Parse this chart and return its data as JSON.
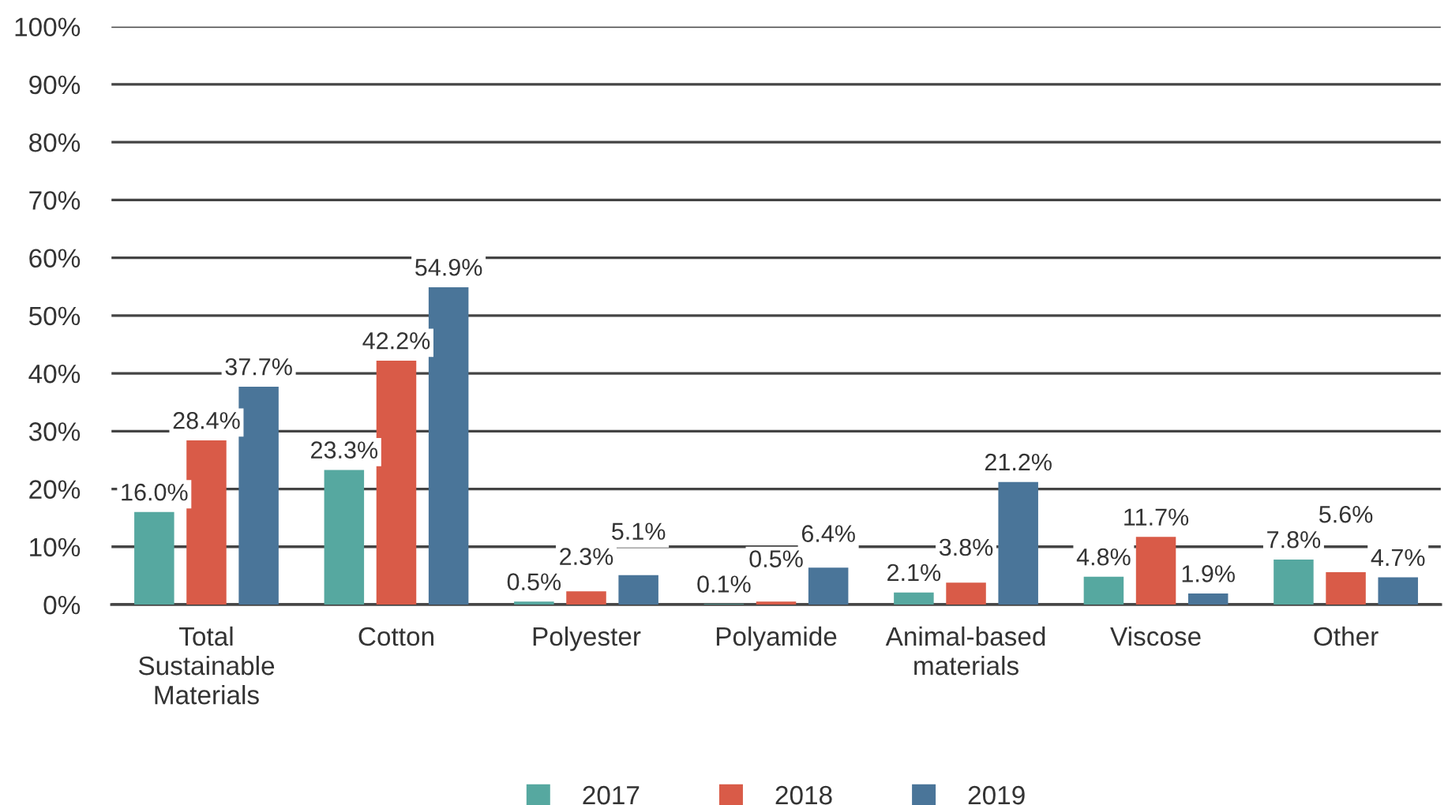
{
  "chart_data": {
    "type": "bar",
    "categories": [
      "Total\nSustainable\nMaterials",
      "Cotton",
      "Polyester",
      "Polyamide",
      "Animal-based\nmaterials",
      "Viscose",
      "Other"
    ],
    "series": [
      {
        "name": "2017",
        "color": "#56a8a0",
        "values": [
          16.0,
          23.3,
          0.5,
          0.1,
          2.1,
          4.8,
          7.8
        ],
        "value_labels": [
          "16.0%",
          "23.3%",
          "0.5%",
          "0.1%",
          "2.1%",
          "4.8%",
          "7.8%"
        ]
      },
      {
        "name": "2018",
        "color": "#d95b48",
        "values": [
          28.4,
          42.2,
          2.3,
          0.5,
          3.8,
          11.7,
          5.6
        ],
        "value_labels": [
          "28.4%",
          "42.2%",
          "2.3%",
          "0.5%",
          "3.8%",
          "11.7%",
          "5.6%"
        ]
      },
      {
        "name": "2019",
        "color": "#4a7599",
        "values": [
          37.7,
          54.9,
          5.1,
          6.4,
          21.2,
          1.9,
          4.7
        ],
        "value_labels": [
          "37.7%",
          "54.9%",
          "5.1%",
          "6.4%",
          "21.2%",
          "1.9%",
          "4.7%"
        ]
      }
    ],
    "ylim": [
      0,
      100
    ],
    "yticks": [
      {
        "value": 0,
        "label": "0%"
      },
      {
        "value": 10,
        "label": "10%"
      },
      {
        "value": 20,
        "label": "20%"
      },
      {
        "value": 30,
        "label": "30%"
      },
      {
        "value": 40,
        "label": "40%"
      },
      {
        "value": 50,
        "label": "50%"
      },
      {
        "value": 60,
        "label": "60%"
      },
      {
        "value": 70,
        "label": "70%"
      },
      {
        "value": 80,
        "label": "80%"
      },
      {
        "value": 90,
        "label": "90%"
      },
      {
        "value": 100,
        "label": "100%"
      }
    ],
    "grid": "y",
    "legend": "bottom"
  }
}
